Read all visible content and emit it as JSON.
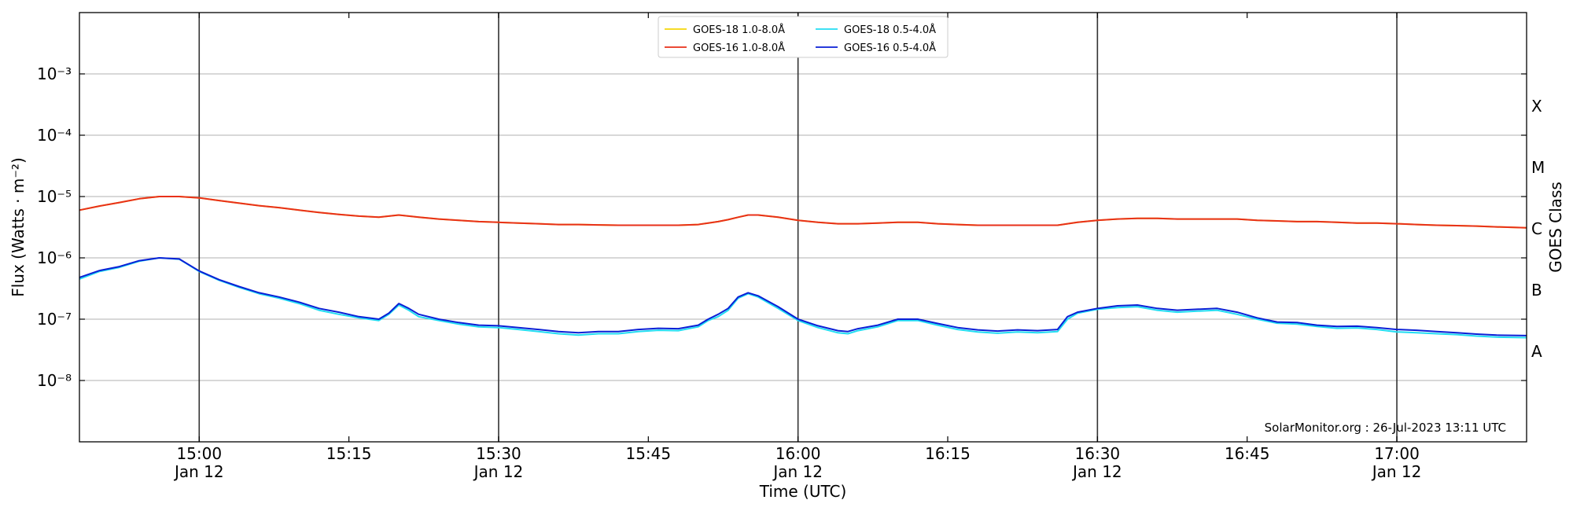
{
  "chart_data": {
    "type": "line",
    "ylabel": "Flux (Watts · m⁻²)",
    "xlabel": "Time (UTC)",
    "right_axis_label": "GOES Class",
    "yscale": "log",
    "ylim": [
      1e-09,
      0.01
    ],
    "xlim": [
      "14:48",
      "17:13"
    ],
    "ytick_labels": [
      {
        "value": 1e-08,
        "label": "10⁻⁸"
      },
      {
        "value": 1e-07,
        "label": "10⁻⁷"
      },
      {
        "value": 1e-06,
        "label": "10⁻⁶"
      },
      {
        "value": 1e-05,
        "label": "10⁻⁵"
      },
      {
        "value": 0.0001,
        "label": "10⁻⁴"
      },
      {
        "value": 0.001,
        "label": "10⁻³"
      }
    ],
    "xtick_labels": [
      {
        "time": "15:00",
        "line1": "15:00",
        "line2": "Jan 12"
      },
      {
        "time": "15:15",
        "line1": "15:15",
        "line2": ""
      },
      {
        "time": "15:30",
        "line1": "15:30",
        "line2": "Jan 12"
      },
      {
        "time": "15:45",
        "line1": "15:45",
        "line2": ""
      },
      {
        "time": "16:00",
        "line1": "16:00",
        "line2": "Jan 12"
      },
      {
        "time": "16:15",
        "line1": "16:15",
        "line2": ""
      },
      {
        "time": "16:30",
        "line1": "16:30",
        "line2": "Jan 12"
      },
      {
        "time": "16:45",
        "line1": "16:45",
        "line2": ""
      },
      {
        "time": "17:00",
        "line1": "17:00",
        "line2": "Jan 12"
      }
    ],
    "vertical_lines": [
      "15:00",
      "15:30",
      "16:00",
      "16:30",
      "17:00"
    ],
    "goes_classes": [
      {
        "label": "A",
        "value": 3e-08
      },
      {
        "label": "B",
        "value": 3e-07
      },
      {
        "label": "C",
        "value": 3e-06
      },
      {
        "label": "M",
        "value": 3e-05
      },
      {
        "label": "X",
        "value": 0.0003
      }
    ],
    "grid": true,
    "legend_position": "top-center",
    "x": [
      "14:48",
      "14:50",
      "14:52",
      "14:54",
      "14:56",
      "14:58",
      "15:00",
      "15:02",
      "15:04",
      "15:06",
      "15:08",
      "15:10",
      "15:12",
      "15:14",
      "15:16",
      "15:18",
      "15:19",
      "15:20",
      "15:21",
      "15:22",
      "15:24",
      "15:26",
      "15:28",
      "15:30",
      "15:32",
      "15:34",
      "15:36",
      "15:38",
      "15:40",
      "15:42",
      "15:44",
      "15:46",
      "15:48",
      "15:50",
      "15:51",
      "15:52",
      "15:53",
      "15:54",
      "15:55",
      "15:56",
      "15:58",
      "16:00",
      "16:02",
      "16:04",
      "16:05",
      "16:06",
      "16:08",
      "16:10",
      "16:12",
      "16:14",
      "16:16",
      "16:18",
      "16:20",
      "16:22",
      "16:24",
      "16:26",
      "16:27",
      "16:28",
      "16:30",
      "16:32",
      "16:34",
      "16:36",
      "16:38",
      "16:40",
      "16:42",
      "16:44",
      "16:46",
      "16:48",
      "16:50",
      "16:52",
      "16:54",
      "16:56",
      "16:58",
      "17:00",
      "17:02",
      "17:04",
      "17:06",
      "17:08",
      "17:10",
      "17:13"
    ],
    "series": [
      {
        "name": "GOES-18 1.0-8.0Å",
        "color": "#f5d60a",
        "values": [
          6e-06,
          7e-06,
          8e-06,
          9.2e-06,
          1e-05,
          1e-05,
          9.5e-06,
          8.6e-06,
          7.8e-06,
          7.1e-06,
          6.6e-06,
          6e-06,
          5.5e-06,
          5.1e-06,
          4.8e-06,
          4.6e-06,
          4.8e-06,
          5e-06,
          4.8e-06,
          4.6e-06,
          4.3e-06,
          4.1e-06,
          3.9e-06,
          3.8e-06,
          3.7e-06,
          3.6e-06,
          3.5e-06,
          3.5e-06,
          3.45e-06,
          3.4e-06,
          3.4e-06,
          3.4e-06,
          3.4e-06,
          3.5e-06,
          3.7e-06,
          3.9e-06,
          4.2e-06,
          4.6e-06,
          5e-06,
          5e-06,
          4.6e-06,
          4.1e-06,
          3.8e-06,
          3.6e-06,
          3.6e-06,
          3.6e-06,
          3.7e-06,
          3.8e-06,
          3.8e-06,
          3.6e-06,
          3.5e-06,
          3.4e-06,
          3.4e-06,
          3.4e-06,
          3.4e-06,
          3.4e-06,
          3.6e-06,
          3.8e-06,
          4.1e-06,
          4.3e-06,
          4.4e-06,
          4.4e-06,
          4.3e-06,
          4.3e-06,
          4.3e-06,
          4.3e-06,
          4.1e-06,
          4e-06,
          3.9e-06,
          3.9e-06,
          3.8e-06,
          3.7e-06,
          3.7e-06,
          3.6e-06,
          3.5e-06,
          3.4e-06,
          3.35e-06,
          3.3e-06,
          3.2e-06,
          3.1e-06
        ]
      },
      {
        "name": "GOES-16 1.0-8.0Å",
        "color": "#e8301a",
        "values": [
          6e-06,
          7e-06,
          8e-06,
          9.2e-06,
          1e-05,
          1e-05,
          9.5e-06,
          8.6e-06,
          7.8e-06,
          7.1e-06,
          6.6e-06,
          6e-06,
          5.5e-06,
          5.1e-06,
          4.8e-06,
          4.6e-06,
          4.8e-06,
          5e-06,
          4.8e-06,
          4.6e-06,
          4.3e-06,
          4.1e-06,
          3.9e-06,
          3.8e-06,
          3.7e-06,
          3.6e-06,
          3.5e-06,
          3.5e-06,
          3.45e-06,
          3.4e-06,
          3.4e-06,
          3.4e-06,
          3.4e-06,
          3.5e-06,
          3.7e-06,
          3.9e-06,
          4.2e-06,
          4.6e-06,
          5e-06,
          5e-06,
          4.6e-06,
          4.1e-06,
          3.8e-06,
          3.6e-06,
          3.6e-06,
          3.6e-06,
          3.7e-06,
          3.8e-06,
          3.8e-06,
          3.6e-06,
          3.5e-06,
          3.4e-06,
          3.4e-06,
          3.4e-06,
          3.4e-06,
          3.4e-06,
          3.6e-06,
          3.8e-06,
          4.1e-06,
          4.3e-06,
          4.4e-06,
          4.4e-06,
          4.3e-06,
          4.3e-06,
          4.3e-06,
          4.3e-06,
          4.1e-06,
          4e-06,
          3.9e-06,
          3.9e-06,
          3.8e-06,
          3.7e-06,
          3.7e-06,
          3.6e-06,
          3.5e-06,
          3.4e-06,
          3.35e-06,
          3.3e-06,
          3.2e-06,
          3.1e-06
        ]
      },
      {
        "name": "GOES-18 0.5-4.0Å",
        "color": "#22ddf2",
        "values": [
          4.5e-07,
          6e-07,
          7e-07,
          8.8e-07,
          1e-06,
          9.5e-07,
          6e-07,
          4.3e-07,
          3.3e-07,
          2.6e-07,
          2.2e-07,
          1.8e-07,
          1.4e-07,
          1.2e-07,
          1.05e-07,
          9.5e-08,
          1.2e-07,
          1.7e-07,
          1.4e-07,
          1.1e-07,
          9.5e-08,
          8.3e-08,
          7.5e-08,
          7.3e-08,
          6.8e-08,
          6.3e-08,
          5.8e-08,
          5.5e-08,
          5.8e-08,
          5.8e-08,
          6.3e-08,
          6.6e-08,
          6.5e-08,
          7.5e-08,
          9.5e-08,
          1.1e-07,
          1.4e-07,
          2.2e-07,
          2.6e-07,
          2.3e-07,
          1.5e-07,
          9.5e-08,
          7.3e-08,
          6e-08,
          5.8e-08,
          6.5e-08,
          7.5e-08,
          9.5e-08,
          9.5e-08,
          8e-08,
          6.8e-08,
          6.2e-08,
          5.9e-08,
          6.2e-08,
          6e-08,
          6.3e-08,
          1e-07,
          1.25e-07,
          1.45e-07,
          1.55e-07,
          1.6e-07,
          1.4e-07,
          1.3e-07,
          1.35e-07,
          1.4e-07,
          1.2e-07,
          1e-07,
          8.6e-08,
          8.3e-08,
          7.6e-08,
          7.1e-08,
          7.2e-08,
          6.8e-08,
          6.2e-08,
          6e-08,
          5.8e-08,
          5.6e-08,
          5.3e-08,
          5.1e-08,
          5e-08
        ]
      },
      {
        "name": "GOES-16 0.5-4.0Å",
        "color": "#0a1fd6",
        "values": [
          4.8e-07,
          6.2e-07,
          7.2e-07,
          9e-07,
          1e-06,
          9.6e-07,
          6.1e-07,
          4.4e-07,
          3.4e-07,
          2.7e-07,
          2.3e-07,
          1.9e-07,
          1.5e-07,
          1.3e-07,
          1.1e-07,
          1e-07,
          1.25e-07,
          1.8e-07,
          1.5e-07,
          1.2e-07,
          1e-07,
          8.8e-08,
          8e-08,
          7.8e-08,
          7.3e-08,
          6.8e-08,
          6.3e-08,
          6e-08,
          6.3e-08,
          6.3e-08,
          6.8e-08,
          7.1e-08,
          7e-08,
          8e-08,
          1e-07,
          1.2e-07,
          1.5e-07,
          2.3e-07,
          2.7e-07,
          2.4e-07,
          1.6e-07,
          1e-07,
          7.8e-08,
          6.5e-08,
          6.3e-08,
          7e-08,
          8e-08,
          1e-07,
          1e-07,
          8.5e-08,
          7.3e-08,
          6.7e-08,
          6.4e-08,
          6.7e-08,
          6.5e-08,
          6.8e-08,
          1.1e-07,
          1.3e-07,
          1.5e-07,
          1.65e-07,
          1.7e-07,
          1.5e-07,
          1.4e-07,
          1.45e-07,
          1.5e-07,
          1.3e-07,
          1.05e-07,
          9e-08,
          8.8e-08,
          8e-08,
          7.6e-08,
          7.7e-08,
          7.3e-08,
          6.8e-08,
          6.6e-08,
          6.3e-08,
          6e-08,
          5.7e-08,
          5.5e-08,
          5.4e-08
        ]
      }
    ],
    "annotation": "SolarMonitor.org : 26-Jul-2023 13:11 UTC"
  }
}
